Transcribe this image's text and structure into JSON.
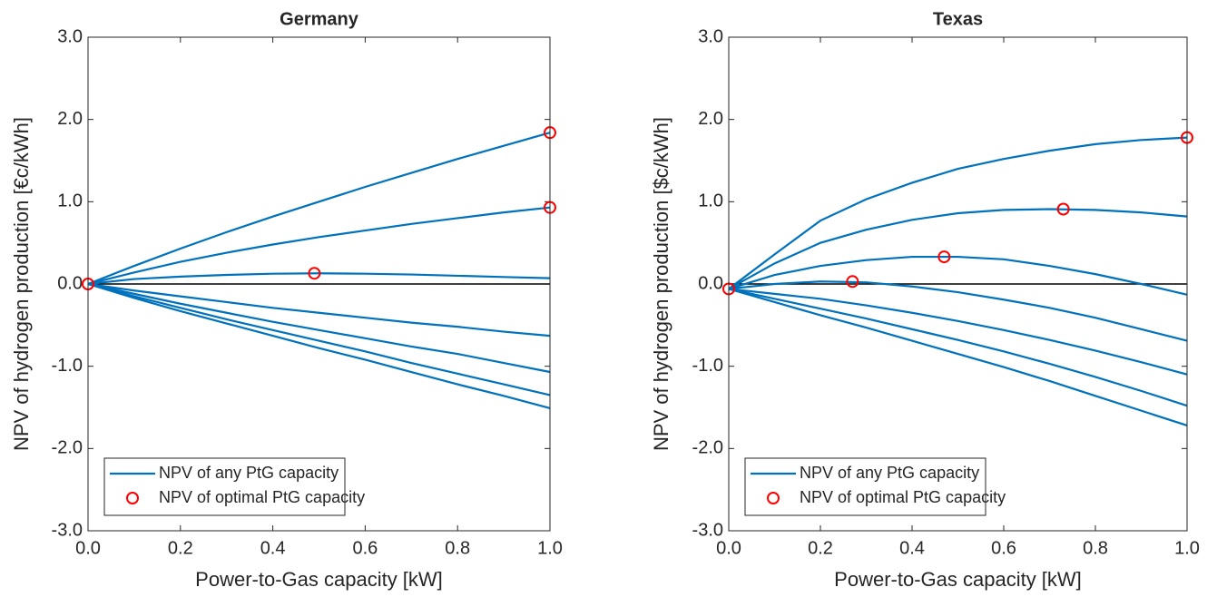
{
  "chart_data": [
    {
      "type": "line",
      "title": "Germany",
      "x_label": "Power-to-Gas capacity [kW]",
      "y_label": "NPV of hydrogen production [€c/kWh]",
      "xlim": [
        0,
        1
      ],
      "ylim": [
        -3,
        3
      ],
      "xticks": [
        {
          "value": 0,
          "label": "0.0"
        },
        0.2,
        0.4,
        0.6,
        0.8,
        {
          "value": 1,
          "label": "1.0"
        }
      ],
      "yticks": [
        {
          "value": -3,
          "label": "-3.0"
        },
        {
          "value": -2,
          "label": "-2.0"
        },
        {
          "value": -1,
          "label": "-1.0"
        },
        {
          "value": 0,
          "label": "0.0"
        },
        {
          "value": 1,
          "label": "1.0"
        },
        {
          "value": 2,
          "label": "2.0"
        },
        {
          "value": 3,
          "label": "3.0"
        }
      ],
      "reference_line": 0,
      "legend": "lower left",
      "x": [
        0,
        0.1,
        0.2,
        0.3,
        0.4,
        0.5,
        0.6,
        0.7,
        0.8,
        0.9,
        1
      ],
      "lines": {
        "name": "NPV of any PtG capacity",
        "color": "#0072bd",
        "curves": [
          [
            0,
            0.22,
            0.43,
            0.63,
            0.82,
            1.0,
            1.18,
            1.35,
            1.52,
            1.68,
            1.84
          ],
          [
            0,
            0.14,
            0.27,
            0.38,
            0.48,
            0.57,
            0.65,
            0.73,
            0.8,
            0.87,
            0.93
          ],
          [
            0,
            0.06,
            0.09,
            0.11,
            0.125,
            0.13,
            0.125,
            0.115,
            0.1,
            0.085,
            0.07
          ],
          [
            0,
            -0.08,
            -0.15,
            -0.22,
            -0.29,
            -0.35,
            -0.41,
            -0.47,
            -0.52,
            -0.58,
            -0.63
          ],
          [
            0,
            -0.12,
            -0.24,
            -0.35,
            -0.46,
            -0.56,
            -0.66,
            -0.76,
            -0.85,
            -0.96,
            -1.07
          ],
          [
            0,
            -0.15,
            -0.29,
            -0.43,
            -0.56,
            -0.69,
            -0.82,
            -0.96,
            -1.09,
            -1.22,
            -1.35
          ],
          [
            0,
            -0.17,
            -0.33,
            -0.48,
            -0.63,
            -0.78,
            -0.92,
            -1.07,
            -1.22,
            -1.36,
            -1.51
          ]
        ]
      },
      "markers": {
        "name": "NPV of optimal PtG capacity",
        "color": "#ff0000",
        "x": [
          0,
          0.49,
          1,
          1
        ],
        "y": [
          0,
          0.13,
          0.93,
          1.84
        ]
      }
    },
    {
      "type": "line",
      "title": "Texas",
      "x_label": "Power-to-Gas capacity [kW]",
      "y_label": "NPV of hydrogen production [$c/kWh]",
      "xlim": [
        0,
        1
      ],
      "ylim": [
        -3,
        3
      ],
      "xticks": [
        {
          "value": 0,
          "label": "0.0"
        },
        0.2,
        0.4,
        0.6,
        0.8,
        {
          "value": 1,
          "label": "1.0"
        }
      ],
      "yticks": [
        {
          "value": -3,
          "label": "-3.0"
        },
        {
          "value": -2,
          "label": "-2.0"
        },
        {
          "value": -1,
          "label": "-1.0"
        },
        {
          "value": 0,
          "label": "0.0"
        },
        {
          "value": 1,
          "label": "1.0"
        },
        {
          "value": 2,
          "label": "2.0"
        },
        {
          "value": 3,
          "label": "3.0"
        }
      ],
      "reference_line": 0,
      "legend": "lower left",
      "x": [
        0,
        0.1,
        0.2,
        0.3,
        0.4,
        0.5,
        0.6,
        0.7,
        0.8,
        0.9,
        1
      ],
      "lines": {
        "name": "NPV of any PtG capacity",
        "color": "#0072bd",
        "curves": [
          [
            -0.06,
            0.36,
            0.77,
            1.03,
            1.23,
            1.4,
            1.52,
            1.62,
            1.7,
            1.75,
            1.78
          ],
          [
            -0.06,
            0.25,
            0.5,
            0.66,
            0.78,
            0.86,
            0.9,
            0.91,
            0.9,
            0.87,
            0.82
          ],
          [
            -0.06,
            0.11,
            0.22,
            0.29,
            0.33,
            0.33,
            0.3,
            0.22,
            0.12,
            0.0,
            -0.13
          ],
          [
            -0.06,
            0.0,
            0.03,
            0.02,
            -0.03,
            -0.1,
            -0.19,
            -0.29,
            -0.41,
            -0.55,
            -0.69
          ],
          [
            -0.06,
            -0.12,
            -0.18,
            -0.26,
            -0.35,
            -0.45,
            -0.56,
            -0.68,
            -0.81,
            -0.95,
            -1.1
          ],
          [
            -0.06,
            -0.18,
            -0.3,
            -0.42,
            -0.55,
            -0.68,
            -0.82,
            -0.97,
            -1.13,
            -1.3,
            -1.48
          ],
          [
            -0.06,
            -0.22,
            -0.38,
            -0.53,
            -0.69,
            -0.85,
            -1.01,
            -1.18,
            -1.36,
            -1.54,
            -1.72
          ]
        ]
      },
      "markers": {
        "name": "NPV of optimal PtG capacity",
        "color": "#ff0000",
        "x": [
          0,
          0.27,
          0.47,
          0.73,
          1
        ],
        "y": [
          -0.06,
          0.03,
          0.33,
          0.91,
          1.78
        ]
      }
    }
  ]
}
